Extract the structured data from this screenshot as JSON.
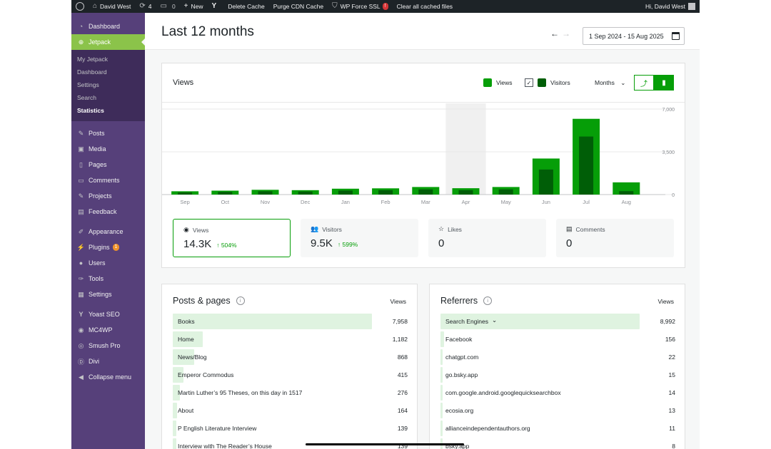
{
  "admin_bar": {
    "site_name": "David West",
    "updates_count": "4",
    "comments_count": "0",
    "new_label": "New",
    "delete_cache": "Delete Cache",
    "purge_cdn": "Purge CDN Cache",
    "force_ssl": "WP Force SSL",
    "force_ssl_badge": "!",
    "clear_cached": "Clear all cached files",
    "greeting": "Hi, David West"
  },
  "sidebar": {
    "dashboard": "Dashboard",
    "jetpack": "Jetpack",
    "jetpack_sub": [
      "My Jetpack",
      "Dashboard",
      "Settings",
      "Search",
      "Statistics"
    ],
    "posts": "Posts",
    "media": "Media",
    "pages": "Pages",
    "comments": "Comments",
    "projects": "Projects",
    "feedback": "Feedback",
    "appearance": "Appearance",
    "plugins": "Plugins",
    "plugins_badge": "1",
    "users": "Users",
    "tools": "Tools",
    "settings": "Settings",
    "yoast": "Yoast SEO",
    "mc4wp": "MC4WP",
    "smush": "Smush Pro",
    "divi": "Divi",
    "collapse": "Collapse menu"
  },
  "header": {
    "title": "Last 12 months",
    "date_range": "1 Sep 2024 - 15 Aug 2025"
  },
  "chart_card": {
    "title": "Views",
    "legend_views": "Views",
    "legend_visitors": "Visitors",
    "period": "Months"
  },
  "chart_data": {
    "type": "bar",
    "categories": [
      "Sep",
      "Oct",
      "Nov",
      "Dec",
      "Jan",
      "Feb",
      "Mar",
      "Apr",
      "May",
      "Jun",
      "Jul",
      "Aug"
    ],
    "series": [
      {
        "name": "Views",
        "values": [
          270,
          320,
          390,
          360,
          480,
          510,
          620,
          520,
          620,
          2950,
          6200,
          1000
        ],
        "color": "#069e08"
      },
      {
        "name": "Visitors",
        "values": [
          180,
          220,
          270,
          250,
          330,
          360,
          430,
          360,
          430,
          2050,
          4750,
          280
        ],
        "color": "#005e07"
      }
    ],
    "ylim": [
      0,
      7000
    ],
    "yticks": [
      "7,000",
      "3,500",
      "0"
    ],
    "highlighted_category": "Apr"
  },
  "stats": [
    {
      "label": "Views",
      "value": "14.3K",
      "delta": "504%"
    },
    {
      "label": "Visitors",
      "value": "9.5K",
      "delta": "599%"
    },
    {
      "label": "Likes",
      "value": "0",
      "delta": ""
    },
    {
      "label": "Comments",
      "value": "0",
      "delta": ""
    }
  ],
  "posts_pages": {
    "title": "Posts & pages",
    "col": "Views",
    "rows": [
      {
        "label": "Books",
        "value": "7,958",
        "share": 1.0
      },
      {
        "label": "Home",
        "value": "1,182",
        "share": 0.149
      },
      {
        "label": "News/Blog",
        "value": "868",
        "share": 0.109
      },
      {
        "label": "Emperor Commodus",
        "value": "415",
        "share": 0.052
      },
      {
        "label": "Martin Luther’s 95 Theses, on this day in 1517",
        "value": "276",
        "share": 0.035
      },
      {
        "label": "About",
        "value": "164",
        "share": 0.021
      },
      {
        "label": "P English Literature Interview",
        "value": "139",
        "share": 0.017
      },
      {
        "label": "Interview with The Reader’s House",
        "value": "139",
        "share": 0.017
      }
    ]
  },
  "referrers": {
    "title": "Referrers",
    "col": "Views",
    "rows": [
      {
        "label": "Search Engines",
        "value": "8,992",
        "share": 1.0
      },
      {
        "label": "Facebook",
        "value": "156",
        "share": 0.017
      },
      {
        "label": "chatgpt.com",
        "value": "22",
        "share": 0.0
      },
      {
        "label": "go.bsky.app",
        "value": "15",
        "share": 0.0
      },
      {
        "label": "com.google.android.googlequicksearchbox",
        "value": "14",
        "share": 0.0
      },
      {
        "label": "ecosia.org",
        "value": "13",
        "share": 0.0
      },
      {
        "label": "allianceindependentauthors.org",
        "value": "11",
        "share": 0.0
      },
      {
        "label": "bsky.app",
        "value": "8",
        "share": 0.0
      }
    ]
  }
}
